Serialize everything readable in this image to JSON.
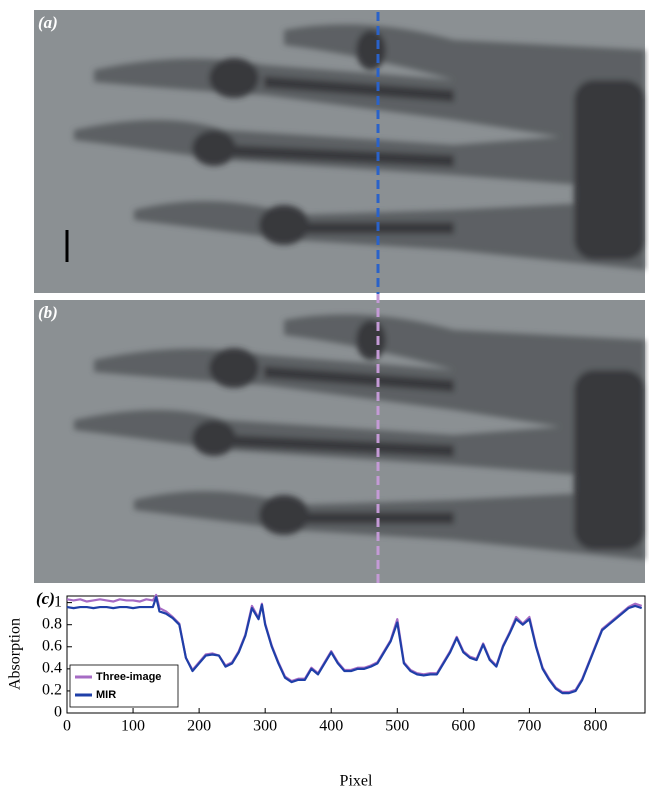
{
  "figure": {
    "panel_labels": [
      "(a)",
      "(b)"
    ]
  },
  "chart_data": {
    "type": "line",
    "panel_label": "(c)",
    "x_label": "Pixel",
    "y_label": "Absorption",
    "xlim": [
      0,
      875
    ],
    "ylim": [
      0,
      1.06
    ],
    "xticks": [
      0,
      100,
      200,
      300,
      400,
      500,
      600,
      700,
      800
    ],
    "yticks": [
      0,
      0.2,
      0.4,
      0.6,
      0.8,
      1
    ],
    "legend": "lower left",
    "x": [
      0,
      10,
      20,
      30,
      40,
      50,
      60,
      70,
      80,
      90,
      100,
      110,
      120,
      130,
      135,
      140,
      150,
      160,
      170,
      180,
      190,
      200,
      210,
      220,
      230,
      240,
      250,
      260,
      270,
      280,
      290,
      295,
      300,
      310,
      320,
      330,
      340,
      350,
      360,
      370,
      380,
      390,
      400,
      410,
      420,
      430,
      440,
      450,
      460,
      470,
      480,
      490,
      500,
      510,
      520,
      530,
      540,
      550,
      560,
      570,
      580,
      590,
      600,
      610,
      620,
      630,
      640,
      650,
      660,
      670,
      680,
      690,
      700,
      710,
      720,
      730,
      740,
      750,
      760,
      770,
      780,
      790,
      800,
      810,
      820,
      830,
      840,
      850,
      860,
      870
    ],
    "series": [
      {
        "name": "Three-image",
        "color": "#a66bc4",
        "values": [
          1.03,
          1.02,
          1.03,
          1.01,
          1.02,
          1.03,
          1.02,
          1.01,
          1.03,
          1.02,
          1.02,
          1.01,
          1.03,
          1.02,
          1.07,
          0.95,
          0.92,
          0.87,
          0.81,
          0.5,
          0.39,
          0.46,
          0.53,
          0.54,
          0.52,
          0.43,
          0.46,
          0.56,
          0.71,
          0.97,
          0.86,
          0.99,
          0.81,
          0.61,
          0.46,
          0.33,
          0.29,
          0.31,
          0.31,
          0.41,
          0.36,
          0.46,
          0.56,
          0.46,
          0.39,
          0.39,
          0.41,
          0.41,
          0.43,
          0.46,
          0.56,
          0.66,
          0.85,
          0.46,
          0.39,
          0.36,
          0.35,
          0.36,
          0.36,
          0.46,
          0.56,
          0.69,
          0.56,
          0.51,
          0.49,
          0.63,
          0.49,
          0.43,
          0.61,
          0.73,
          0.87,
          0.81,
          0.87,
          0.61,
          0.41,
          0.31,
          0.23,
          0.19,
          0.19,
          0.21,
          0.31,
          0.46,
          0.61,
          0.76,
          0.81,
          0.86,
          0.91,
          0.96,
          0.99,
          0.97
        ]
      },
      {
        "name": "MIR",
        "color": "#1f3fa8",
        "values": [
          0.96,
          0.95,
          0.96,
          0.96,
          0.95,
          0.96,
          0.96,
          0.95,
          0.96,
          0.96,
          0.95,
          0.96,
          0.96,
          0.96,
          1.05,
          0.92,
          0.9,
          0.86,
          0.8,
          0.5,
          0.38,
          0.45,
          0.52,
          0.53,
          0.52,
          0.42,
          0.45,
          0.55,
          0.7,
          0.95,
          0.85,
          0.98,
          0.8,
          0.6,
          0.45,
          0.32,
          0.28,
          0.3,
          0.3,
          0.4,
          0.35,
          0.45,
          0.55,
          0.45,
          0.38,
          0.38,
          0.4,
          0.4,
          0.42,
          0.45,
          0.55,
          0.65,
          0.82,
          0.45,
          0.38,
          0.35,
          0.34,
          0.35,
          0.35,
          0.45,
          0.55,
          0.68,
          0.55,
          0.5,
          0.48,
          0.62,
          0.48,
          0.42,
          0.6,
          0.72,
          0.85,
          0.8,
          0.85,
          0.6,
          0.4,
          0.3,
          0.22,
          0.18,
          0.18,
          0.2,
          0.3,
          0.45,
          0.6,
          0.75,
          0.8,
          0.85,
          0.9,
          0.95,
          0.97,
          0.95
        ]
      }
    ]
  }
}
